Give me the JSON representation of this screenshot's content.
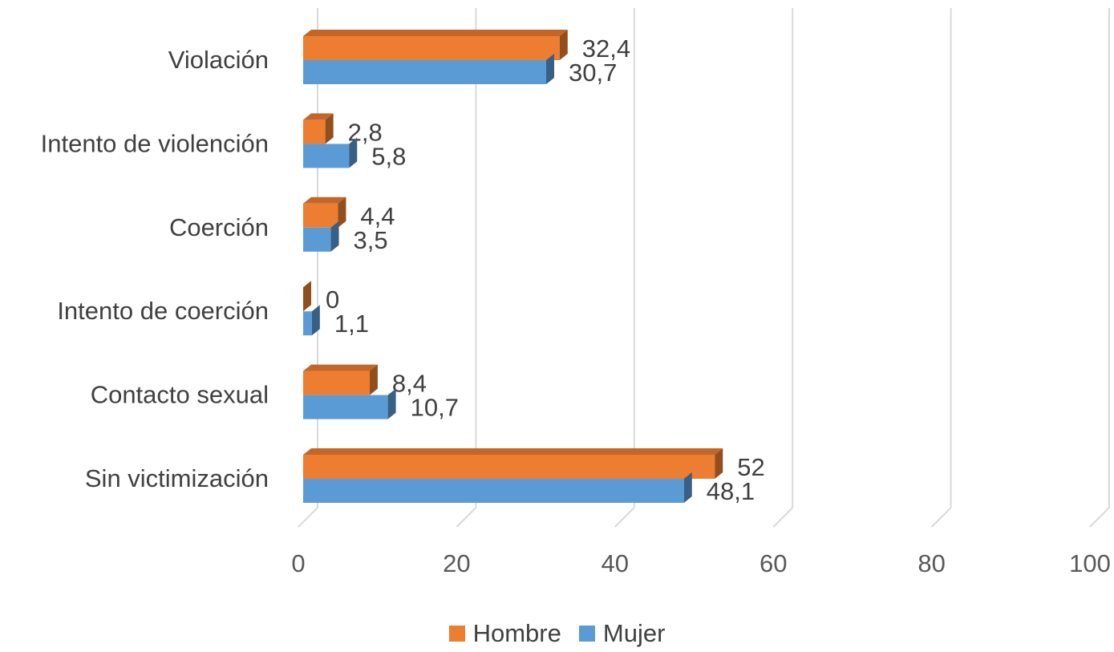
{
  "chart_data": {
    "type": "bar",
    "orientation": "horizontal",
    "three_d": true,
    "categories": [
      "Violación",
      "Intento de violención",
      "Coerción",
      "Intento de coerción",
      "Contacto sexual",
      "Sin victimización"
    ],
    "series": [
      {
        "name": "Hombre",
        "color": "#ED7D31",
        "values": [
          32.4,
          2.8,
          4.4,
          0,
          8.4,
          52
        ],
        "labels": [
          "32,4",
          "2,8",
          "4,4",
          "0",
          "8,4",
          "52"
        ]
      },
      {
        "name": "Mujer",
        "color": "#5B9BD5",
        "values": [
          30.7,
          5.8,
          3.5,
          1.1,
          10.7,
          48.1
        ],
        "labels": [
          "30,7",
          "5,8",
          "3,5",
          "1,1",
          "10,7",
          "48,1"
        ]
      }
    ],
    "x_ticks": [
      "0",
      "20",
      "40",
      "60",
      "80",
      "100"
    ],
    "xlim": [
      0,
      100
    ],
    "grid": true,
    "legend_position": "bottom"
  }
}
